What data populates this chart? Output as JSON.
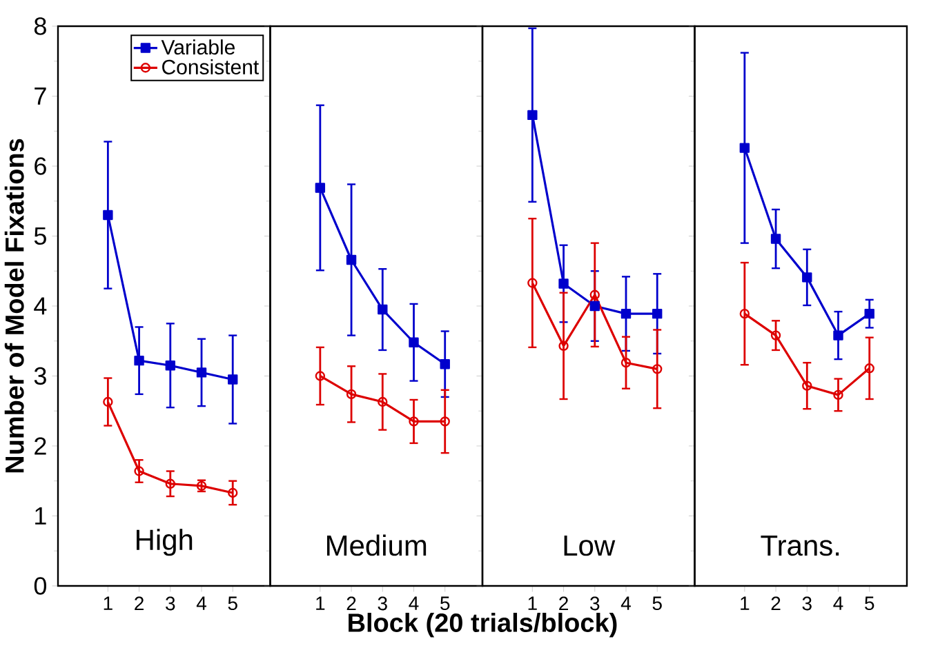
{
  "chart_data": [
    {
      "type": "line",
      "xlabel": "Block (20 trials/block)",
      "ylabel": "Number of Model Fixations",
      "categories": [
        "1",
        "2",
        "3",
        "4",
        "5"
      ],
      "ylim": [
        0,
        8
      ],
      "yticks": [
        0,
        1,
        2,
        3,
        4,
        5,
        6,
        7,
        8
      ],
      "legend": "top right",
      "annotations": [
        "High"
      ],
      "series": [
        {
          "name": "Variable",
          "color": "#0000cc",
          "marker": "square",
          "values": [
            5.3,
            3.22,
            3.15,
            3.05,
            2.95
          ],
          "errors": [
            1.05,
            0.48,
            0.6,
            0.48,
            0.63
          ]
        },
        {
          "name": "Consistent",
          "color": "#dd0000",
          "marker": "circle",
          "values": [
            2.63,
            1.64,
            1.46,
            1.43,
            1.33
          ],
          "errors": [
            0.34,
            0.16,
            0.18,
            0.08,
            0.17
          ]
        }
      ]
    },
    {
      "type": "line",
      "categories": [
        "1",
        "2",
        "3",
        "4",
        "5"
      ],
      "ylim": [
        0,
        8
      ],
      "yticks": [
        0,
        1,
        2,
        3,
        4,
        5,
        6,
        7,
        8
      ],
      "tick_labels": "x",
      "annotations": [
        "Medium"
      ],
      "series": [
        {
          "color": "#0000cc",
          "marker": "square",
          "values": [
            5.69,
            4.66,
            3.95,
            3.48,
            3.17
          ],
          "errors": [
            1.18,
            1.08,
            0.58,
            0.55,
            0.47
          ]
        },
        {
          "color": "#dd0000",
          "marker": "circle",
          "values": [
            3.0,
            2.74,
            2.63,
            2.35,
            2.35
          ],
          "errors": [
            0.41,
            0.4,
            0.4,
            0.31,
            0.45
          ]
        }
      ]
    },
    {
      "type": "line",
      "categories": [
        "1",
        "2",
        "3",
        "4",
        "5"
      ],
      "ylim": [
        0,
        8
      ],
      "yticks": [
        0,
        1,
        2,
        3,
        4,
        5,
        6,
        7,
        8
      ],
      "tick_labels": "x",
      "annotations": [
        "Low"
      ],
      "series": [
        {
          "color": "#0000cc",
          "marker": "square",
          "values": [
            6.73,
            4.32,
            4.0,
            3.89,
            3.89
          ],
          "errors": [
            1.24,
            0.55,
            0.5,
            0.53,
            0.57
          ]
        },
        {
          "color": "#dd0000",
          "marker": "circle",
          "values": [
            4.33,
            3.43,
            4.16,
            3.19,
            3.1
          ],
          "errors": [
            0.92,
            0.76,
            0.74,
            0.37,
            0.56
          ]
        }
      ]
    },
    {
      "type": "line",
      "categories": [
        "1",
        "2",
        "3",
        "4",
        "5"
      ],
      "ylim": [
        0,
        8
      ],
      "yticks": [
        0,
        1,
        2,
        3,
        4,
        5,
        6,
        7,
        8
      ],
      "tick_labels": "x",
      "annotations": [
        "Trans."
      ],
      "series": [
        {
          "color": "#0000cc",
          "marker": "square",
          "values": [
            6.26,
            4.96,
            4.41,
            3.58,
            3.89
          ],
          "errors": [
            1.36,
            0.42,
            0.4,
            0.34,
            0.2
          ]
        },
        {
          "color": "#dd0000",
          "marker": "circle",
          "values": [
            3.89,
            3.58,
            2.86,
            2.73,
            3.11
          ],
          "errors": [
            0.73,
            0.21,
            0.33,
            0.23,
            0.44
          ]
        }
      ]
    }
  ]
}
